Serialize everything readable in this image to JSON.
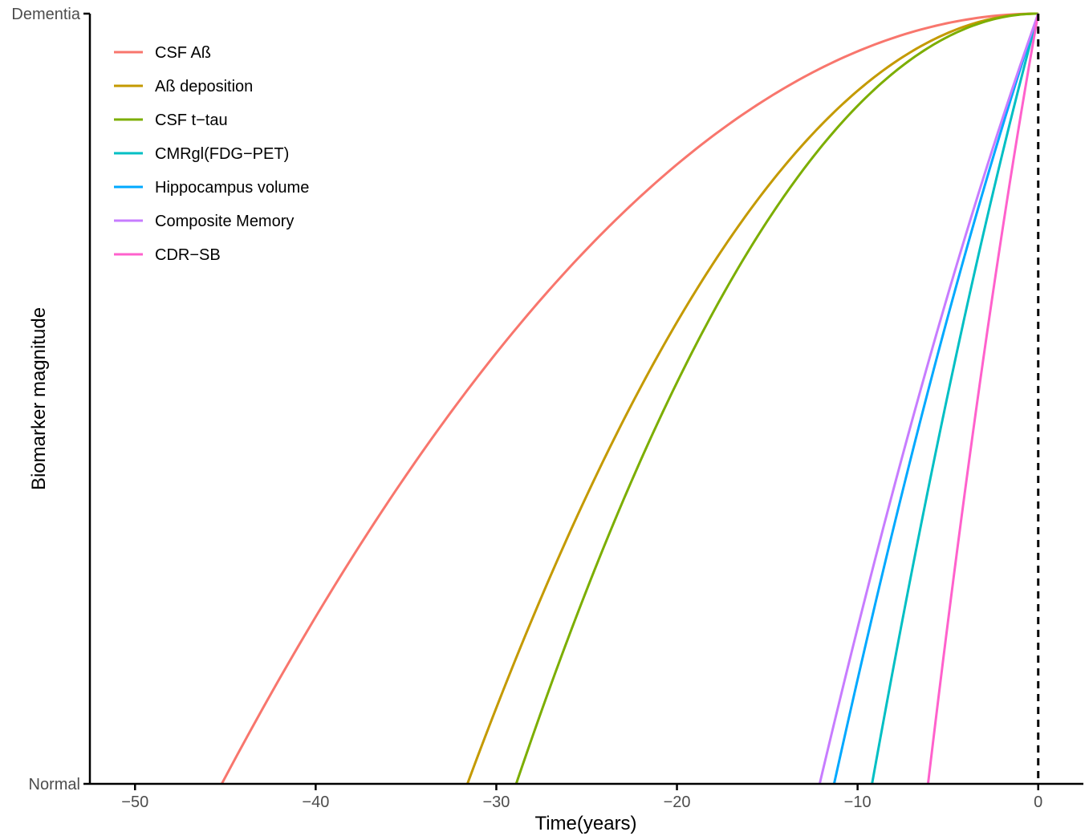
{
  "chart_data": {
    "type": "line",
    "xlabel": "Time(years)",
    "ylabel": "Biomarker magnitude",
    "xlim": [
      -52.5,
      2.5
    ],
    "ylim": [
      0,
      1
    ],
    "x_ticks": [
      -50,
      -40,
      -30,
      -20,
      -10,
      0
    ],
    "x_tick_labels": [
      "−50",
      "−40",
      "−30",
      "−20",
      "−10",
      "0"
    ],
    "y_ticks": [
      0,
      1
    ],
    "y_tick_labels": [
      "Normal",
      "Dementia"
    ],
    "grid": false,
    "legend_position": "top-left",
    "reference_line": {
      "x": 0,
      "style": "dashed",
      "color": "#000000"
    },
    "series": [
      {
        "name": "CSF Aß",
        "color": "#F8766D",
        "onset": -45.2,
        "curve": "concave",
        "x": [
          -45.2,
          -40,
          -35,
          -30,
          -25,
          -20,
          -15,
          -10,
          -5,
          0
        ],
        "y": [
          0,
          0.21,
          0.39,
          0.55,
          0.68,
          0.79,
          0.88,
          0.95,
          0.99,
          1.0
        ]
      },
      {
        "name": "Aß deposition",
        "color": "#C49A00",
        "onset": -31.6,
        "curve": "concave",
        "x": [
          -31.6,
          -28,
          -24,
          -20,
          -16,
          -12,
          -8,
          -4,
          0
        ],
        "y": [
          0,
          0.22,
          0.42,
          0.6,
          0.75,
          0.87,
          0.95,
          0.99,
          1.0
        ]
      },
      {
        "name": "CSF t−tau",
        "color": "#7CAE00",
        "onset": -28.9,
        "curve": "concave",
        "x": [
          -28.9,
          -25,
          -21,
          -17,
          -13,
          -9,
          -5,
          0
        ],
        "y": [
          0,
          0.26,
          0.48,
          0.66,
          0.81,
          0.92,
          0.98,
          1.0
        ]
      },
      {
        "name": "CMRgl(FDG−PET)",
        "color": "#00BFC4",
        "onset": -9.2,
        "curve": "convex",
        "x": [
          -9.2,
          -7,
          -5,
          -3,
          -1,
          0
        ],
        "y": [
          0,
          0.23,
          0.46,
          0.67,
          0.89,
          1.0
        ]
      },
      {
        "name": "Hippocampus volume",
        "color": "#00A9FF",
        "onset": -11.3,
        "curve": "convex",
        "x": [
          -11.3,
          -9,
          -7,
          -5,
          -3,
          -1,
          0
        ],
        "y": [
          0,
          0.19,
          0.37,
          0.56,
          0.73,
          0.91,
          1.0
        ]
      },
      {
        "name": "Composite Memory",
        "color": "#C77CFF",
        "onset": -12.1,
        "curve": "convex",
        "x": [
          -12.1,
          -10,
          -8,
          -6,
          -4,
          -2,
          0
        ],
        "y": [
          0,
          0.16,
          0.34,
          0.51,
          0.67,
          0.84,
          1.0
        ]
      },
      {
        "name": "CDR−SB",
        "color": "#FF61CC",
        "onset": -6.1,
        "curve": "convex",
        "x": [
          -6.1,
          -5,
          -4,
          -3,
          -2,
          -1,
          0
        ],
        "y": [
          0,
          0.15,
          0.32,
          0.49,
          0.67,
          0.84,
          1.0
        ]
      }
    ]
  }
}
